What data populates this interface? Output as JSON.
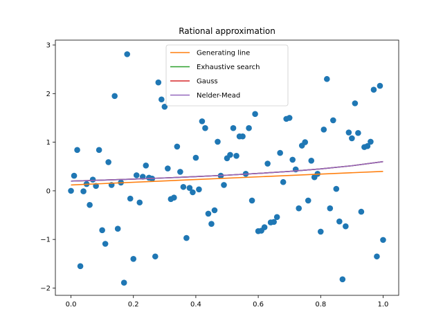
{
  "chart_data": {
    "type": "scatter",
    "title": "Rational approximation",
    "xlabel": "",
    "ylabel": "",
    "xlim": [
      -0.05,
      1.05
    ],
    "ylim": [
      -2.15,
      3.1
    ],
    "x_ticks": [
      0.0,
      0.2,
      0.4,
      0.6,
      0.8,
      1.0
    ],
    "x_tick_labels": [
      "0.0",
      "0.2",
      "0.4",
      "0.6",
      "0.8",
      "1.0"
    ],
    "y_ticks": [
      -2,
      -1,
      0,
      1,
      2,
      3
    ],
    "y_tick_labels": [
      "−2",
      "−1",
      "0",
      "1",
      "2",
      "3"
    ],
    "grid": false,
    "legend_position": "top-center",
    "points": {
      "color": "#1f77b4",
      "x": [
        0.0,
        0.01,
        0.02,
        0.03,
        0.04,
        0.05,
        0.06,
        0.07,
        0.08,
        0.09,
        0.1,
        0.11,
        0.12,
        0.13,
        0.14,
        0.15,
        0.16,
        0.17,
        0.18,
        0.19,
        0.2,
        0.21,
        0.22,
        0.23,
        0.24,
        0.25,
        0.26,
        0.27,
        0.28,
        0.29,
        0.3,
        0.31,
        0.32,
        0.33,
        0.34,
        0.35,
        0.36,
        0.37,
        0.38,
        0.39,
        0.4,
        0.41,
        0.42,
        0.43,
        0.44,
        0.45,
        0.46,
        0.47,
        0.48,
        0.49,
        0.5,
        0.51,
        0.52,
        0.53,
        0.54,
        0.55,
        0.56,
        0.57,
        0.58,
        0.59,
        0.6,
        0.61,
        0.62,
        0.63,
        0.64,
        0.65,
        0.66,
        0.67,
        0.68,
        0.69,
        0.7,
        0.71,
        0.72,
        0.73,
        0.74,
        0.75,
        0.76,
        0.77,
        0.78,
        0.79,
        0.8,
        0.81,
        0.82,
        0.83,
        0.84,
        0.85,
        0.86,
        0.87,
        0.88,
        0.89,
        0.9,
        0.91,
        0.92,
        0.93,
        0.94,
        0.95,
        0.96,
        0.97,
        0.98,
        0.99,
        1.0
      ],
      "y": [
        0.0,
        0.31,
        0.84,
        -1.55,
        -0.01,
        0.14,
        -0.29,
        0.23,
        0.1,
        0.84,
        -0.81,
        -1.09,
        0.59,
        0.12,
        1.95,
        -0.78,
        0.17,
        -1.89,
        2.81,
        -0.16,
        -1.4,
        0.32,
        -0.24,
        0.29,
        0.52,
        0.27,
        0.25,
        -1.35,
        2.23,
        1.88,
        1.73,
        0.46,
        -0.17,
        -0.14,
        0.91,
        0.39,
        0.08,
        -0.97,
        0.06,
        -0.03,
        0.68,
        0.03,
        1.43,
        1.29,
        -0.47,
        -0.68,
        -0.4,
        1.01,
        0.31,
        0.12,
        0.67,
        0.74,
        1.29,
        0.72,
        1.12,
        1.12,
        0.35,
        1.29,
        -0.2,
        1.58,
        -0.83,
        -0.82,
        -0.75,
        0.56,
        -0.65,
        -0.64,
        -0.54,
        0.78,
        0.18,
        1.48,
        1.5,
        0.64,
        0.44,
        -0.36,
        0.93,
        1.0,
        -0.2,
        0.62,
        0.28,
        0.35,
        -0.84,
        1.26,
        2.3,
        -0.36,
        1.45,
        0.04,
        -0.63,
        -1.82,
        -0.73,
        1.2,
        1.08,
        1.8,
        1.19,
        -0.43,
        0.9,
        0.92,
        1.01,
        2.08,
        -1.35,
        2.16,
        -1.01
      ]
    },
    "series": [
      {
        "name": "Generating line",
        "color": "#ff7f0e",
        "x": [
          0.0,
          1.0
        ],
        "y": [
          0.12,
          0.4
        ]
      },
      {
        "name": "Exhaustive search",
        "color": "#2ca02c",
        "x": [
          0.0,
          0.1,
          0.2,
          0.3,
          0.4,
          0.5,
          0.6,
          0.7,
          0.8,
          0.9,
          1.0
        ],
        "y": [
          0.2,
          0.22,
          0.241,
          0.265,
          0.292,
          0.322,
          0.358,
          0.4,
          0.451,
          0.516,
          0.6
        ]
      },
      {
        "name": "Gauss",
        "color": "#d62728",
        "x": [
          0.0,
          0.1,
          0.2,
          0.3,
          0.4,
          0.5,
          0.6,
          0.7,
          0.8,
          0.9,
          1.0
        ],
        "y": [
          0.2,
          0.22,
          0.241,
          0.265,
          0.292,
          0.322,
          0.358,
          0.4,
          0.451,
          0.516,
          0.6
        ]
      },
      {
        "name": "Nelder-Mead",
        "color": "#9467bd",
        "x": [
          0.0,
          0.1,
          0.2,
          0.3,
          0.4,
          0.5,
          0.6,
          0.7,
          0.8,
          0.9,
          1.0
        ],
        "y": [
          0.2,
          0.22,
          0.241,
          0.265,
          0.292,
          0.322,
          0.358,
          0.4,
          0.451,
          0.516,
          0.6
        ]
      }
    ]
  }
}
